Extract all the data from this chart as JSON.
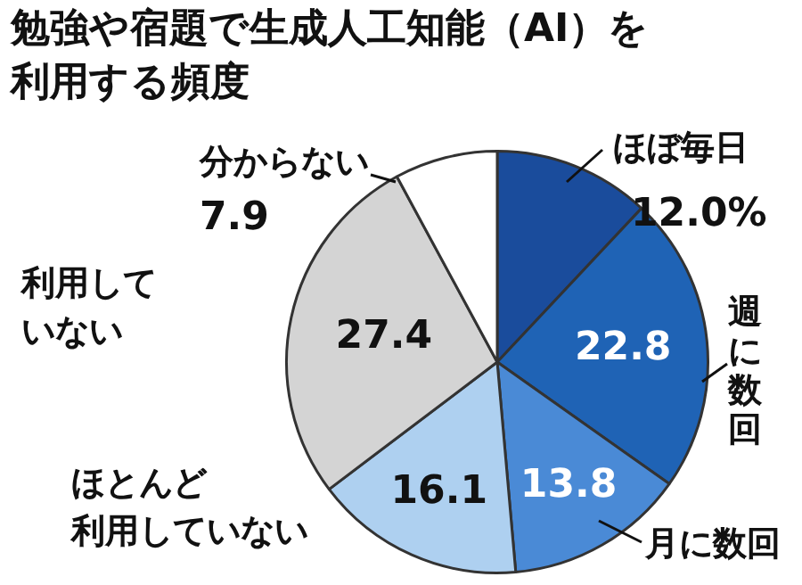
{
  "chart_data": {
    "type": "pie",
    "title": "勉強や宿題で生成人工知能（AI）を利用する頻度",
    "categories": [
      "ほぼ毎日",
      "週に数回",
      "月に数回",
      "ほとんど利用していない",
      "利用していない",
      "分からない"
    ],
    "values": [
      12.0,
      22.8,
      13.8,
      16.1,
      27.4,
      7.9
    ],
    "colors": [
      "#1a4c9c",
      "#1f63b5",
      "#4a8ad6",
      "#aed0f0",
      "#d4d4d4",
      "#ffffff"
    ],
    "value_labels": [
      "12.0%",
      "22.8",
      "13.8",
      "16.1",
      "27.4",
      "7.9"
    ],
    "legend": false
  }
}
